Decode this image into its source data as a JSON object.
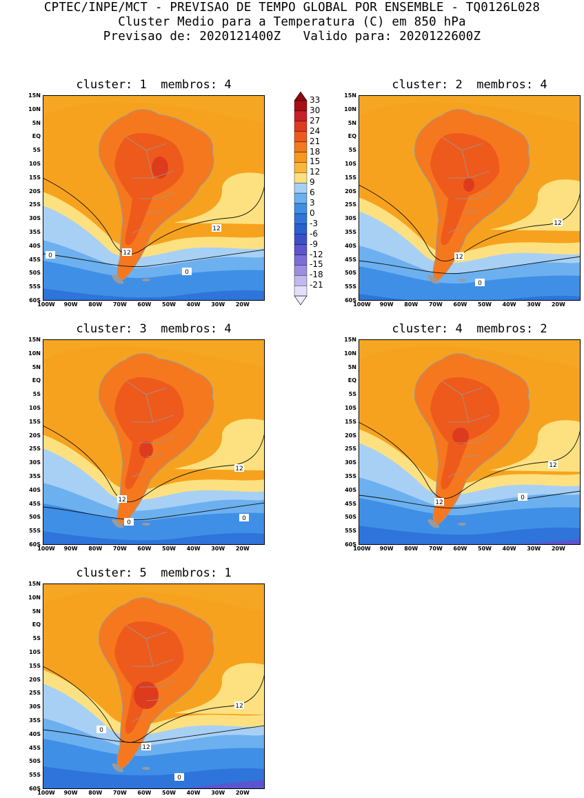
{
  "header": {
    "line1": "CPTEC/INPE/MCT - PREVISAO DE TEMPO GLOBAL POR ENSEMBLE - TQ0126L028",
    "line2": "Cluster Medio para a Temperatura (C) em 850 hPa",
    "line3": "Previsao de: 2020121400Z   Valido para: 2020122600Z"
  },
  "panels": [
    {
      "title": "cluster: 1  membros: 4",
      "contour_labels": [
        "12",
        "12",
        "0",
        "0"
      ]
    },
    {
      "title": "cluster: 2  membros: 4",
      "contour_labels": [
        "12",
        "12",
        "0"
      ]
    },
    {
      "title": "cluster: 3  membros: 4",
      "contour_labels": [
        "12",
        "12",
        "0",
        "0"
      ]
    },
    {
      "title": "cluster: 4  membros: 2",
      "contour_labels": [
        "12",
        "12",
        "0"
      ]
    },
    {
      "title": "cluster: 5  membros: 1",
      "contour_labels": [
        "12",
        "12",
        "0",
        "0"
      ]
    }
  ],
  "axes": {
    "lat_ticks": [
      "15N",
      "10N",
      "5N",
      "EQ",
      "5S",
      "10S",
      "15S",
      "20S",
      "25S",
      "30S",
      "35S",
      "40S",
      "45S",
      "50S",
      "55S",
      "60S"
    ],
    "lon_ticks": [
      "100W",
      "90W",
      "80W",
      "70W",
      "60W",
      "50W",
      "40W",
      "30W",
      "20W"
    ]
  },
  "colorbar": {
    "labels": [
      "33",
      "30",
      "27",
      "24",
      "21",
      "18",
      "15",
      "12",
      "9",
      "6",
      "3",
      "0",
      "-3",
      "-6",
      "-9",
      "-12",
      "-15",
      "-18",
      "-21"
    ],
    "colors": [
      "#a50f15",
      "#c8202a",
      "#de3b1e",
      "#ee5a1c",
      "#f5781e",
      "#f8981c",
      "#fbb63a",
      "#fde180",
      "#a8d0f5",
      "#6cb0ef",
      "#3f8fe6",
      "#2e74da",
      "#2a5fd0",
      "#3d4fc8",
      "#5b55cf",
      "#7a6fd8",
      "#9c8fe2",
      "#c2b8ee",
      "#e4defa"
    ],
    "arrow_top": "#8b0a10",
    "arrow_bottom": "#f0ecfc"
  }
}
